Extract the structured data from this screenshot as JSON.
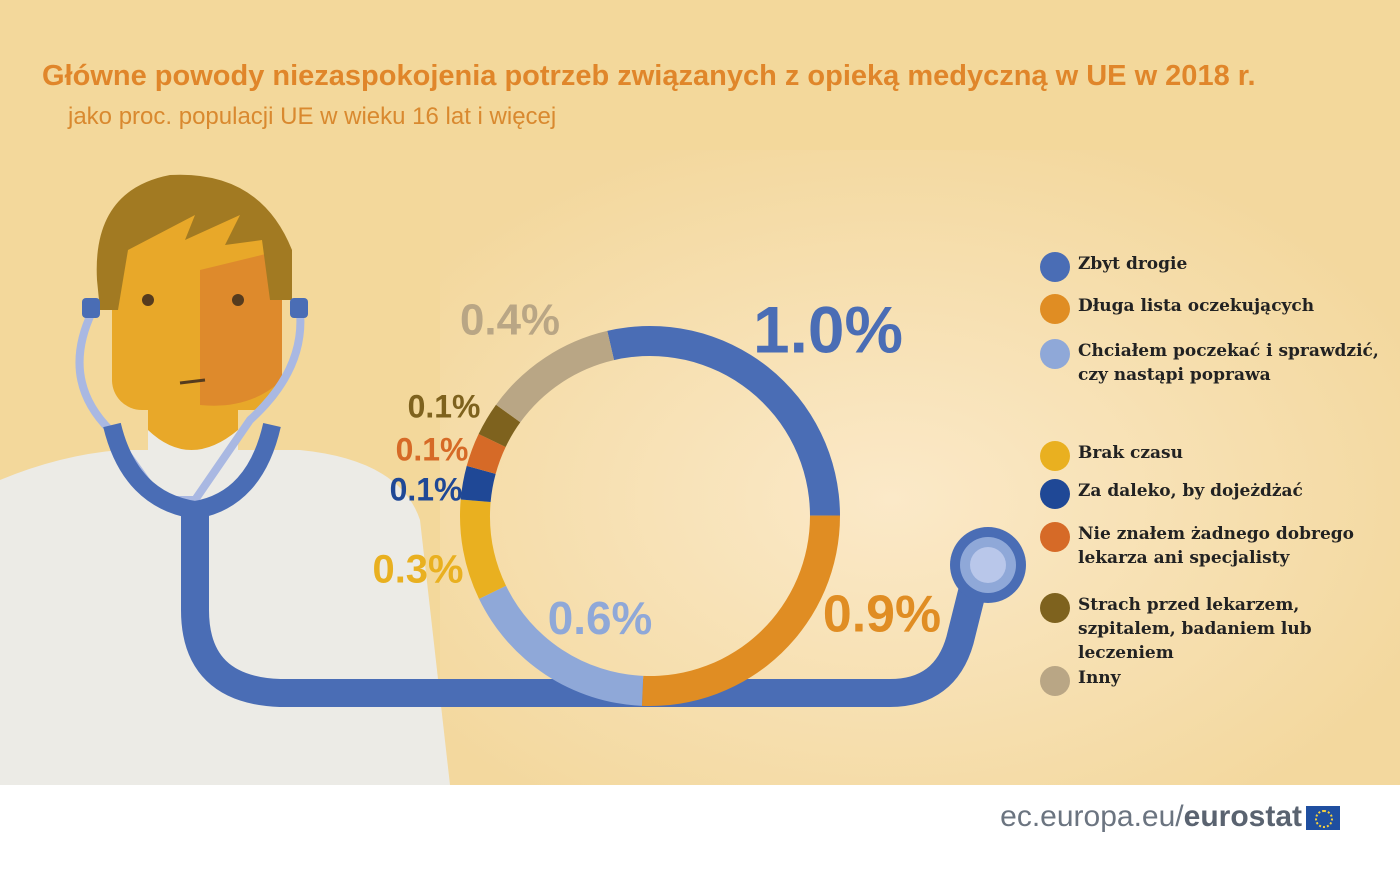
{
  "chart_data": {
    "type": "donut",
    "title": "Główne powody niezaspokojenia potrzeb związanych z opieką medyczną w UE w 2018 r.",
    "subtitle": "jako proc. populacji UE w wieku 16 lat i więcej",
    "categories": [
      "Zbyt drogie",
      "Długa lista oczekujących",
      "Chciałem poczekać i sprawdzić, czy nastąpi poprawa",
      "Brak czasu",
      "Za daleko, by dojeżdżać",
      "Nie znałem żadnego dobrego lekarza ani specjalisty",
      "Strach przed lekarzem, szpitalem, badaniem lub leczeniem",
      "Inny"
    ],
    "values": [
      1.0,
      0.9,
      0.6,
      0.3,
      0.1,
      0.1,
      0.1,
      0.4
    ],
    "value_labels": [
      "1.0%",
      "0.9%",
      "0.6%",
      "0.3%",
      "0.1%",
      "0.1%",
      "0.1%",
      "0.4%"
    ],
    "colors": [
      "#4a6db5",
      "#e08d23",
      "#8fa8d8",
      "#e9b020",
      "#1f4896",
      "#d66a27",
      "#7e621e",
      "#b9a685"
    ],
    "legend": "right"
  },
  "footer": {
    "site": "ec.europa.eu/",
    "brand": "eurostat"
  }
}
